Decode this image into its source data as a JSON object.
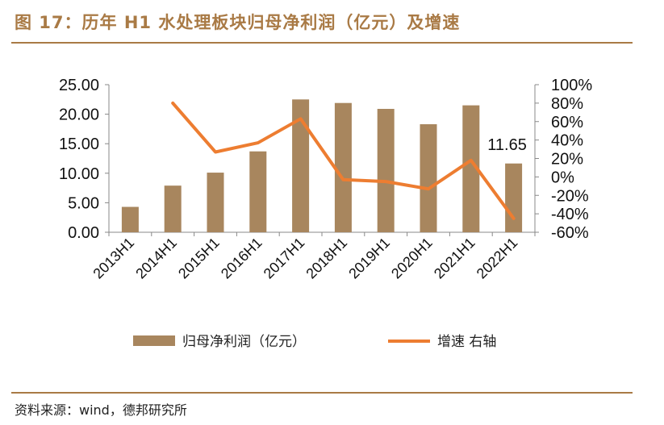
{
  "title": "图 17：历年 H1 水处理板块归母净利润（亿元）及增速",
  "source": "资料来源：wind，德邦研究所",
  "colors": {
    "bar": "#a8865e",
    "line": "#ed7d31",
    "accent": "#a97a45"
  },
  "chart_data": {
    "type": "bar+line",
    "categories": [
      "2013H1",
      "2014H1",
      "2015H1",
      "2016H1",
      "2017H1",
      "2018H1",
      "2019H1",
      "2020H1",
      "2021H1",
      "2022H1"
    ],
    "series": [
      {
        "name": "归母净利润（亿元）",
        "type": "bar",
        "axis": "left",
        "values": [
          4.3,
          7.9,
          10.1,
          13.7,
          22.5,
          21.9,
          20.9,
          18.3,
          21.5,
          11.65
        ]
      },
      {
        "name": "增速 右轴",
        "type": "line",
        "axis": "right",
        "values": [
          null,
          80,
          27,
          37,
          63,
          -3,
          -5,
          -13,
          18,
          -45
        ]
      }
    ],
    "y_left": {
      "range": [
        0,
        25
      ],
      "ticks": [
        "0.00",
        "5.00",
        "10.00",
        "15.00",
        "20.00",
        "25.00"
      ]
    },
    "y_right": {
      "range": [
        -60,
        100
      ],
      "ticks": [
        "-60%",
        "-40%",
        "-20%",
        "0%",
        "20%",
        "40%",
        "60%",
        "80%",
        "100%"
      ]
    },
    "annotations": [
      {
        "category": "2022H1",
        "text": "11.65"
      }
    ],
    "legend": {
      "position": "bottom"
    },
    "grid": false
  }
}
